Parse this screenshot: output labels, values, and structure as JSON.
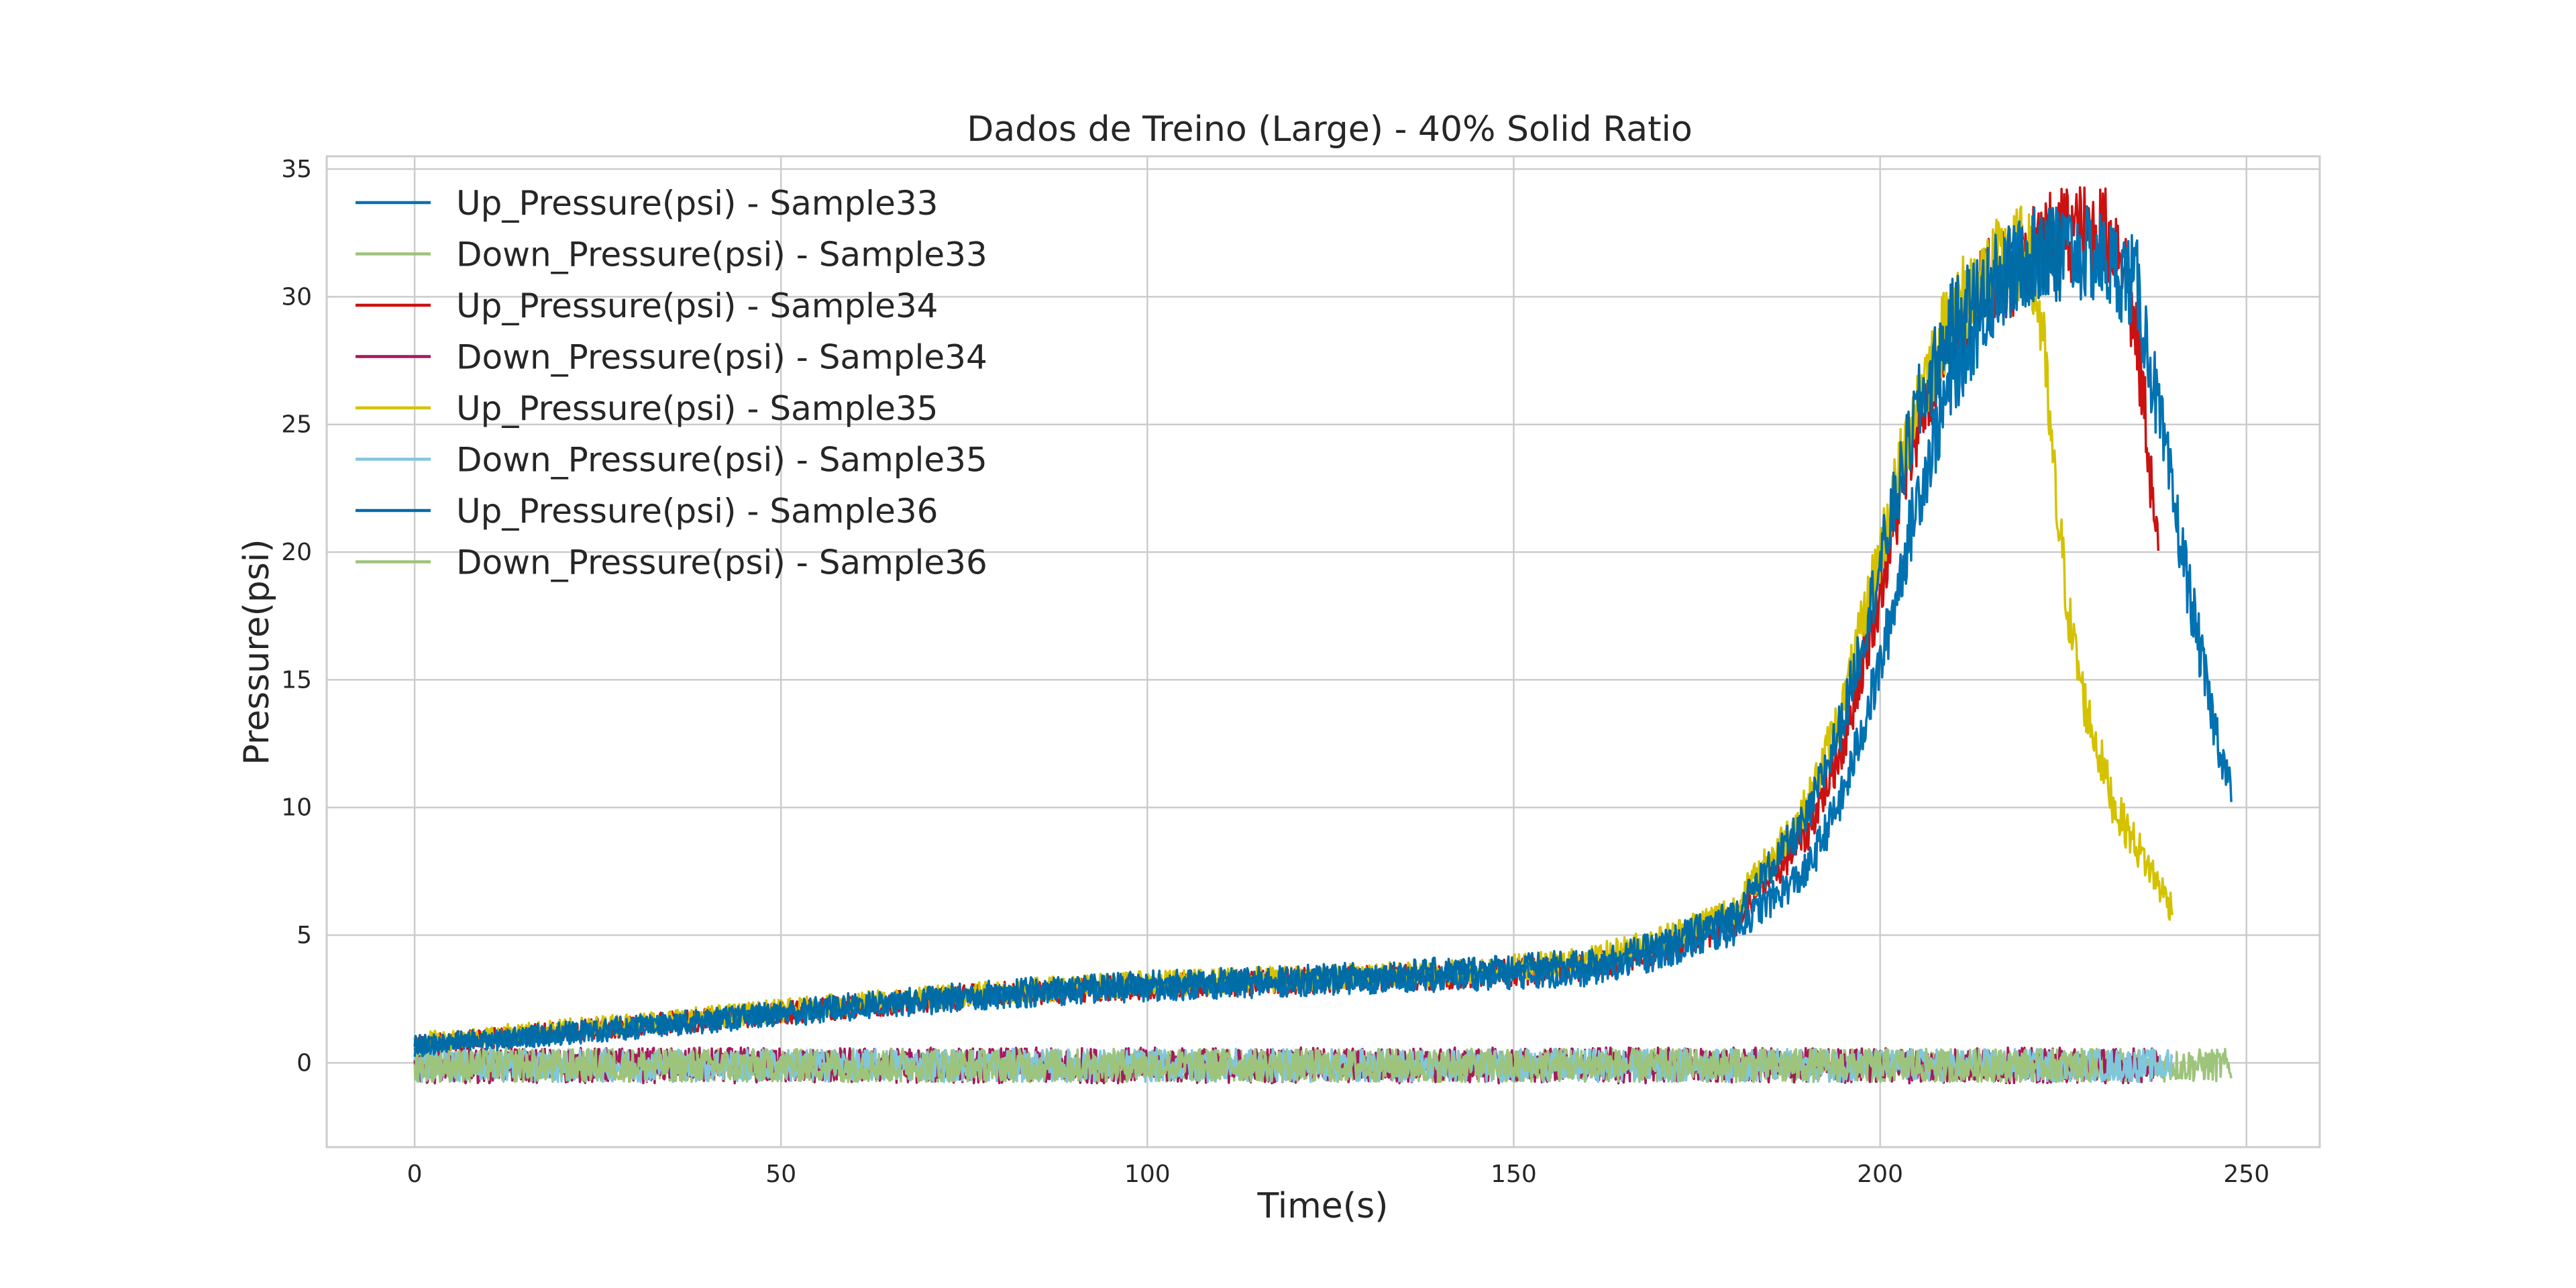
{
  "chart_data": {
    "type": "line",
    "title": "Dados de Treino (Large) - 40% Solid Ratio",
    "xlabel": "Time(s)",
    "ylabel": "Pressure(psi)",
    "xlim": [
      -12,
      260
    ],
    "ylim": [
      -3.3,
      35.5
    ],
    "xticks": [
      0,
      50,
      100,
      150,
      200,
      250
    ],
    "yticks": [
      0,
      5,
      10,
      15,
      20,
      25,
      30,
      35
    ],
    "grid": true,
    "legend_position": "upper-left",
    "series": [
      {
        "name": "Up_Pressure(psi) - Sample33",
        "color": "#0072b2",
        "x": [
          0,
          20,
          40,
          60,
          80,
          100,
          120,
          140,
          160,
          170,
          180,
          190,
          195,
          200,
          205,
          210,
          215,
          220,
          225,
          230,
          235,
          240,
          245,
          248
        ],
        "y": [
          0.6,
          1.1,
          1.6,
          2.1,
          2.6,
          2.9,
          3.1,
          3.3,
          3.5,
          4.2,
          5.2,
          7.5,
          10.5,
          15.5,
          22,
          27,
          30,
          31.5,
          31.8,
          31.5,
          30.5,
          22,
          14,
          10.5
        ]
      },
      {
        "name": "Down_Pressure(psi) - Sample33",
        "color": "#9dc47a",
        "x": [
          0,
          248
        ],
        "y": [
          -0.1,
          -0.1
        ],
        "noise": 0.65
      },
      {
        "name": "Up_Pressure(psi) - Sample34",
        "color": "#cc1111",
        "x": [
          0,
          20,
          40,
          60,
          80,
          100,
          120,
          140,
          160,
          170,
          180,
          190,
          195,
          200,
          205,
          210,
          215,
          220,
          225,
          230,
          233,
          236,
          238
        ],
        "y": [
          0.7,
          1.2,
          1.7,
          2.2,
          2.7,
          3.0,
          3.2,
          3.4,
          3.7,
          4.4,
          5.5,
          9.0,
          12.5,
          18.5,
          25,
          28.5,
          30.5,
          31.5,
          32.5,
          32.5,
          32,
          26,
          19.5
        ]
      },
      {
        "name": "Down_Pressure(psi) - Sample34",
        "color": "#a8185a",
        "x": [
          0,
          238
        ],
        "y": [
          -0.1,
          -0.1
        ],
        "noise": 0.7
      },
      {
        "name": "Up_Pressure(psi) - Sample35",
        "color": "#d4c200",
        "x": [
          0,
          20,
          40,
          60,
          80,
          100,
          120,
          140,
          160,
          170,
          180,
          190,
          195,
          200,
          205,
          210,
          215,
          220,
          222,
          224,
          226,
          228,
          230,
          232,
          234,
          236,
          238,
          240
        ],
        "y": [
          0.8,
          1.3,
          1.8,
          2.3,
          2.8,
          3.1,
          3.3,
          3.5,
          4.0,
          4.8,
          6.0,
          10.0,
          14.0,
          20.0,
          26.0,
          29.5,
          31.0,
          31.8,
          29.0,
          22.0,
          17.0,
          14.0,
          12.0,
          10.0,
          9.0,
          8.0,
          7.0,
          6.0
        ]
      },
      {
        "name": "Down_Pressure(psi) - Sample35",
        "color": "#80c7dd",
        "x": [
          0,
          240
        ],
        "y": [
          -0.1,
          -0.1
        ],
        "noise": 0.65
      },
      {
        "name": "Up_Pressure(psi) - Sample36",
        "color": "#006ba4",
        "x": [
          0,
          20,
          40,
          60,
          80,
          100,
          120,
          140,
          160,
          170,
          180,
          190,
          195,
          200,
          205,
          210,
          215,
          220,
          225
        ],
        "y": [
          0.7,
          1.2,
          1.7,
          2.3,
          2.8,
          3.1,
          3.3,
          3.6,
          3.9,
          4.6,
          5.8,
          9.5,
          13.5,
          19.5,
          25.5,
          29.0,
          30.5,
          31.5,
          31.6
        ]
      },
      {
        "name": "Down_Pressure(psi) - Sample36",
        "color": "#9dc47a",
        "x": [
          0,
          230
        ],
        "y": [
          -0.1,
          -0.1
        ],
        "noise": 0.65
      }
    ]
  }
}
